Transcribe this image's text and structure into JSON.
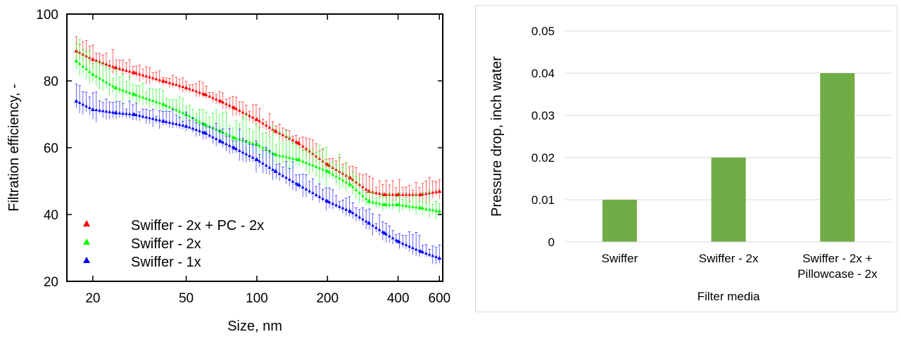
{
  "chart_data": [
    {
      "type": "scatter",
      "xlabel": "Size, nm",
      "ylabel": "Filtration efficiency, -",
      "x_scale": "log",
      "xlim": [
        15.5,
        620
      ],
      "ylim": [
        20,
        100
      ],
      "x_ticks": [
        20,
        50,
        100,
        200,
        400,
        600
      ],
      "x_tick_labels": [
        "20",
        "50",
        "100",
        "200",
        "400",
        "600"
      ],
      "y_ticks": [
        20,
        40,
        60,
        80,
        100
      ],
      "y_tick_labels": [
        "20",
        "40",
        "60",
        "80",
        "100"
      ],
      "legend_position": "bottom-left",
      "error_bars": true,
      "series": [
        {
          "name": "Swiffer - 2x + PC - 2x",
          "color": "#ff0000",
          "marker": "triangle",
          "x": [
            17,
            20,
            25,
            30,
            40,
            50,
            60,
            70,
            80,
            100,
            120,
            150,
            200,
            250,
            300,
            350,
            400,
            500,
            600
          ],
          "y": [
            89,
            86.5,
            84,
            82.5,
            80,
            78,
            76,
            74,
            72,
            68.5,
            65,
            61.5,
            55,
            51,
            47,
            46,
            46,
            46,
            47
          ],
          "error": [
            4,
            3.5,
            3,
            2.5,
            2,
            2,
            2,
            2,
            2.5,
            3,
            3,
            3,
            3,
            3,
            3,
            3,
            3,
            3,
            4
          ]
        },
        {
          "name": "Swiffer - 2x",
          "color": "#00ff00",
          "marker": "triangle",
          "x": [
            17,
            20,
            25,
            30,
            40,
            50,
            60,
            70,
            80,
            100,
            120,
            150,
            200,
            250,
            300,
            350,
            400,
            500,
            600
          ],
          "y": [
            86,
            82,
            78,
            76,
            73,
            70,
            67,
            65,
            63,
            61,
            58,
            56.5,
            53,
            49,
            44,
            43,
            43,
            42,
            41
          ],
          "error": [
            5,
            4.5,
            4,
            3.5,
            3,
            3,
            4,
            5,
            6,
            6,
            5.5,
            5,
            5,
            4,
            3,
            3,
            3,
            3,
            4
          ]
        },
        {
          "name": "Swiffer - 1x",
          "color": "#0000ff",
          "marker": "triangle",
          "x": [
            17,
            20,
            25,
            30,
            40,
            50,
            60,
            70,
            80,
            100,
            120,
            150,
            200,
            250,
            300,
            350,
            400,
            500,
            600
          ],
          "y": [
            74,
            71.5,
            70.5,
            70,
            68,
            66.5,
            64.5,
            62,
            60,
            56.5,
            53,
            49,
            44,
            41,
            37.5,
            34.5,
            32,
            29,
            27
          ],
          "error": [
            5,
            4,
            3.5,
            3,
            2.5,
            2.5,
            3,
            3.5,
            4,
            4,
            4,
            3.5,
            3,
            3,
            3,
            3,
            3,
            3,
            3
          ]
        }
      ]
    },
    {
      "type": "bar",
      "xlabel": "Filter media",
      "ylabel": "Pressure drop, inch water",
      "categories": [
        "Swiffer",
        "Swiffer - 2x",
        "Swiffer - 2x + Pillowcase - 2x"
      ],
      "category_lines": [
        [
          "Swiffer"
        ],
        [
          "Swiffer - 2x"
        ],
        [
          "Swiffer - 2x +",
          "Pillowcase - 2x"
        ]
      ],
      "values": [
        0.01,
        0.02,
        0.04
      ],
      "ylim": [
        0,
        0.05
      ],
      "y_ticks": [
        0,
        0.01,
        0.02,
        0.03,
        0.04,
        0.05
      ],
      "y_tick_labels": [
        "0",
        "0.01",
        "0.02",
        "0.03",
        "0.04",
        "0.05"
      ],
      "grid": true,
      "bar_color": "#70ad47"
    }
  ]
}
